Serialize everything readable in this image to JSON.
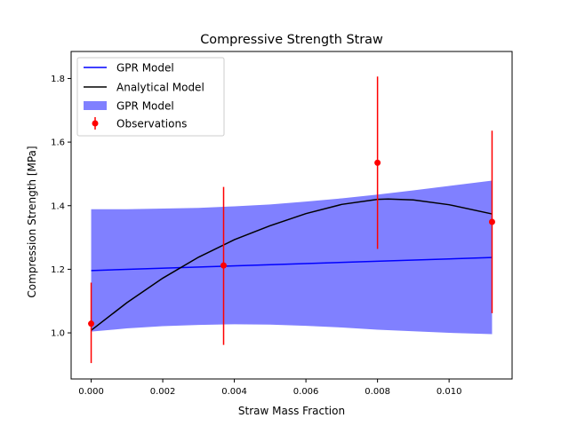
{
  "chart_data": {
    "type": "line",
    "title": "Compressive Strength Straw",
    "xlabel": "Straw Mass Fraction",
    "ylabel": "Compression Strength [MPa]",
    "xlim": [
      -0.00056,
      0.01176
    ],
    "ylim": [
      0.855,
      1.885
    ],
    "xticks": [
      0.0,
      0.002,
      0.004,
      0.006,
      0.008,
      0.01
    ],
    "xtick_labels": [
      "0.000",
      "0.002",
      "0.004",
      "0.006",
      "0.008",
      "0.010"
    ],
    "yticks": [
      1.0,
      1.2,
      1.4,
      1.6,
      1.8
    ],
    "ytick_labels": [
      "1.0",
      "1.2",
      "1.4",
      "1.6",
      "1.8"
    ],
    "grid": false,
    "legend_position": "top-left",
    "legend": [
      "GPR Model",
      "Analytical Model",
      "GPR Model",
      "Observations"
    ],
    "series": [
      {
        "name": "GPR Model",
        "kind": "line",
        "color": "#0000ff",
        "x": [
          0.0,
          0.0112
        ],
        "y": [
          1.196,
          1.237
        ]
      },
      {
        "name": "Analytical Model",
        "kind": "line",
        "color": "#000000",
        "x": [
          0.0,
          0.001,
          0.002,
          0.003,
          0.004,
          0.005,
          0.006,
          0.007,
          0.008,
          0.0083,
          0.009,
          0.01,
          0.0112
        ],
        "y": [
          1.008,
          1.095,
          1.172,
          1.238,
          1.293,
          1.337,
          1.375,
          1.404,
          1.42,
          1.421,
          1.418,
          1.403,
          1.374
        ]
      },
      {
        "name": "GPR Model",
        "kind": "band",
        "color": "#8080ff",
        "x": [
          0.0,
          0.001,
          0.002,
          0.003,
          0.004,
          0.005,
          0.006,
          0.007,
          0.008,
          0.009,
          0.01,
          0.0112
        ],
        "upper": [
          1.389,
          1.389,
          1.391,
          1.393,
          1.398,
          1.404,
          1.413,
          1.423,
          1.435,
          1.448,
          1.462,
          1.479
        ],
        "lower": [
          1.004,
          1.014,
          1.021,
          1.025,
          1.027,
          1.026,
          1.022,
          1.017,
          1.01,
          1.005,
          1.0,
          0.996
        ]
      },
      {
        "name": "Observations",
        "kind": "errorbar",
        "color": "#ff0000",
        "x": [
          0.0,
          0.0037,
          0.008,
          0.0112
        ],
        "y": [
          1.029,
          1.212,
          1.535,
          1.349
        ],
        "err_low": [
          0.905,
          0.962,
          1.264,
          1.062
        ],
        "err_high": [
          1.158,
          1.459,
          1.806,
          1.636
        ]
      }
    ]
  }
}
